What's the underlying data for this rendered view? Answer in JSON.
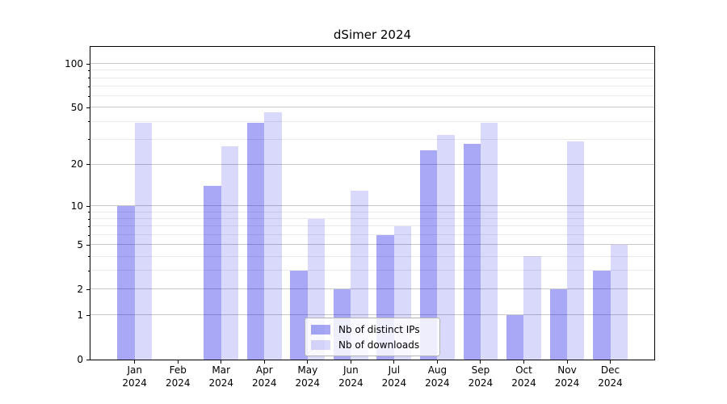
{
  "chart_data": {
    "type": "bar",
    "title": "dSimer 2024",
    "x_tick_year": "2024",
    "categories": [
      "Jan",
      "Feb",
      "Mar",
      "Apr",
      "May",
      "Jun",
      "Jul",
      "Aug",
      "Sep",
      "Oct",
      "Nov",
      "Dec"
    ],
    "series": [
      {
        "name": "Nb of distinct IPs",
        "color_hex": "#0000e6",
        "alpha": 0.34,
        "values": [
          10,
          0,
          14,
          39,
          3,
          2,
          6,
          25,
          28,
          1,
          2,
          3
        ]
      },
      {
        "name": "Nb of downloads",
        "color_hex": "#0000e6",
        "alpha": 0.15,
        "values": [
          39,
          0,
          27,
          46,
          8,
          13,
          7,
          32,
          39,
          4,
          29,
          5
        ]
      }
    ],
    "yscale": "log1p",
    "ylim": [
      0,
      130
    ],
    "y_major_ticks": [
      0,
      1,
      2,
      5,
      10,
      20,
      50,
      100
    ],
    "y_minor_ticks": [
      3,
      4,
      6,
      7,
      8,
      9,
      30,
      40,
      60,
      70,
      80,
      90
    ],
    "grid": "on",
    "legend_position": "lower-center"
  },
  "colors": {
    "major_grid": "#c8c8c8",
    "minor_grid": "#eaeaea",
    "spine": "#000000",
    "legend_border": "#b3b3b3",
    "background": "#ffffff"
  }
}
